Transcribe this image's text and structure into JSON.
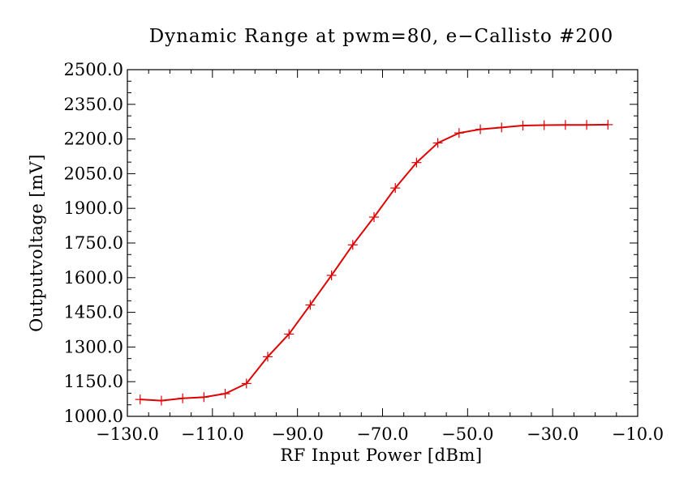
{
  "chart_data": {
    "type": "line",
    "title": "Dynamic Range at pwm=80, e−Callisto #200",
    "xlabel": "RF Input Power [dBm]",
    "ylabel": "Outputvoltage [mV]",
    "xlim": [
      -130,
      -10
    ],
    "ylim": [
      1000,
      2500
    ],
    "x_ticks": [
      -130,
      -110,
      -90,
      -70,
      -50,
      -30,
      -10
    ],
    "x_tick_labels": [
      "−130.0",
      "−110.0",
      "−90.0",
      "−70.0",
      "−50.0",
      "−30.0",
      "−10.0"
    ],
    "y_ticks": [
      1000,
      1150,
      1300,
      1450,
      1600,
      1750,
      1900,
      2050,
      2200,
      2350,
      2500
    ],
    "y_tick_labels": [
      "1000.0",
      "1150.0",
      "1300.0",
      "1450.0",
      "1600.0",
      "1750.0",
      "1900.0",
      "2050.0",
      "2200.0",
      "2350.0",
      "2500.0"
    ],
    "grid": false,
    "line_color": "#e00000",
    "marker": "plus",
    "series": [
      {
        "x": [
          -127,
          -122,
          -117,
          -112,
          -107,
          -102,
          -97,
          -92,
          -87,
          -82,
          -77,
          -72,
          -67,
          -62,
          -57,
          -52,
          -47,
          -42,
          -37,
          -32,
          -27,
          -22,
          -17
        ],
        "y": [
          1073,
          1068,
          1078,
          1083,
          1098,
          1142,
          1258,
          1356,
          1482,
          1610,
          1742,
          1862,
          1988,
          2098,
          2183,
          2226,
          2242,
          2250,
          2258,
          2260,
          2261,
          2261,
          2262
        ]
      }
    ]
  }
}
